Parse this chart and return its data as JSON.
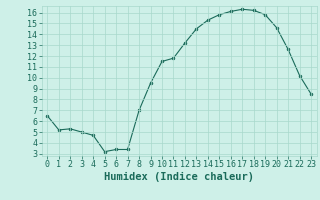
{
  "title": "",
  "xlabel": "Humidex (Indice chaleur)",
  "ylabel": "",
  "x": [
    0,
    1,
    2,
    3,
    4,
    5,
    6,
    7,
    8,
    9,
    10,
    11,
    12,
    13,
    14,
    15,
    16,
    17,
    18,
    19,
    20,
    21,
    22,
    23
  ],
  "y": [
    6.5,
    5.2,
    5.3,
    5.0,
    4.7,
    3.2,
    3.4,
    3.4,
    7.0,
    9.5,
    11.5,
    11.8,
    13.2,
    14.5,
    15.3,
    15.8,
    16.1,
    16.3,
    16.2,
    15.8,
    14.6,
    12.6,
    10.2,
    8.5
  ],
  "line_color": "#1a6b5a",
  "marker": "o",
  "marker_size": 2.0,
  "bg_color": "#cef0e8",
  "grid_color": "#a8d8cc",
  "ylim": [
    2.8,
    16.6
  ],
  "xlim": [
    -0.5,
    23.5
  ],
  "yticks": [
    3,
    4,
    5,
    6,
    7,
    8,
    9,
    10,
    11,
    12,
    13,
    14,
    15,
    16
  ],
  "xticks": [
    0,
    1,
    2,
    3,
    4,
    5,
    6,
    7,
    8,
    9,
    10,
    11,
    12,
    13,
    14,
    15,
    16,
    17,
    18,
    19,
    20,
    21,
    22,
    23
  ],
  "tick_color": "#1a6b5a",
  "label_color": "#1a6b5a",
  "xlabel_fontsize": 7.5,
  "tick_fontsize": 6.0
}
